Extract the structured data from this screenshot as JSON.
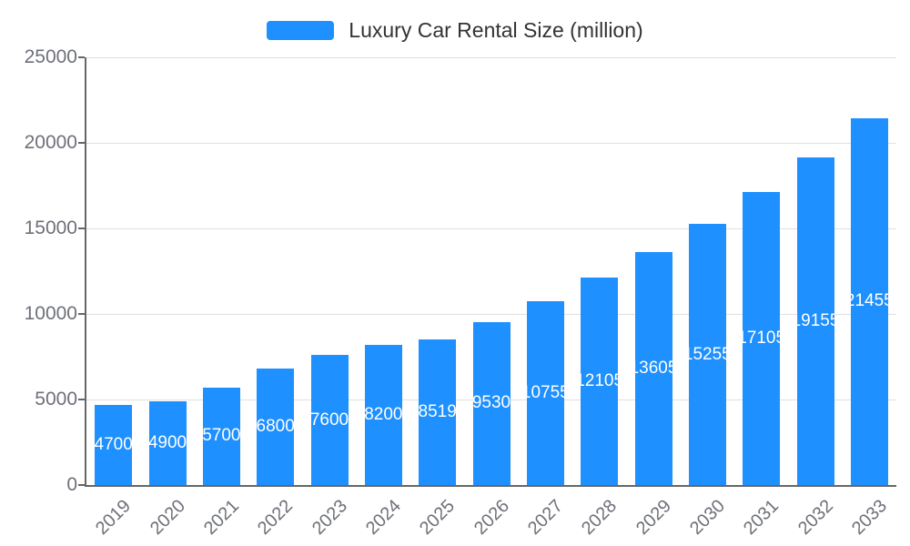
{
  "chart_data": {
    "type": "bar",
    "title": "Luxury Car Rental Size (million)",
    "categories": [
      "2019",
      "2020",
      "2021",
      "2022",
      "2023",
      "2024",
      "2025",
      "2026",
      "2027",
      "2028",
      "2029",
      "2030",
      "2031",
      "2032",
      "2033"
    ],
    "values": [
      4700,
      4900,
      5700,
      6800,
      7600,
      8200,
      8519,
      9530,
      10755,
      12105,
      13605,
      15255,
      17105,
      19155,
      21455
    ],
    "xlabel": "",
    "ylabel": "",
    "ylim": [
      0,
      25000
    ],
    "y_ticks": [
      0,
      5000,
      10000,
      15000,
      20000,
      25000
    ],
    "grid": true,
    "legend_position": "top",
    "x_label_rotation": -45,
    "value_labels_position": "inside-center",
    "bar_color": "#1E90FF",
    "value_label_color": "#FFFFFF",
    "axis_color": "#666666",
    "grid_color": "#E0E0E0",
    "tick_label_color": "#6E7079",
    "legend_text_color": "#333333"
  }
}
